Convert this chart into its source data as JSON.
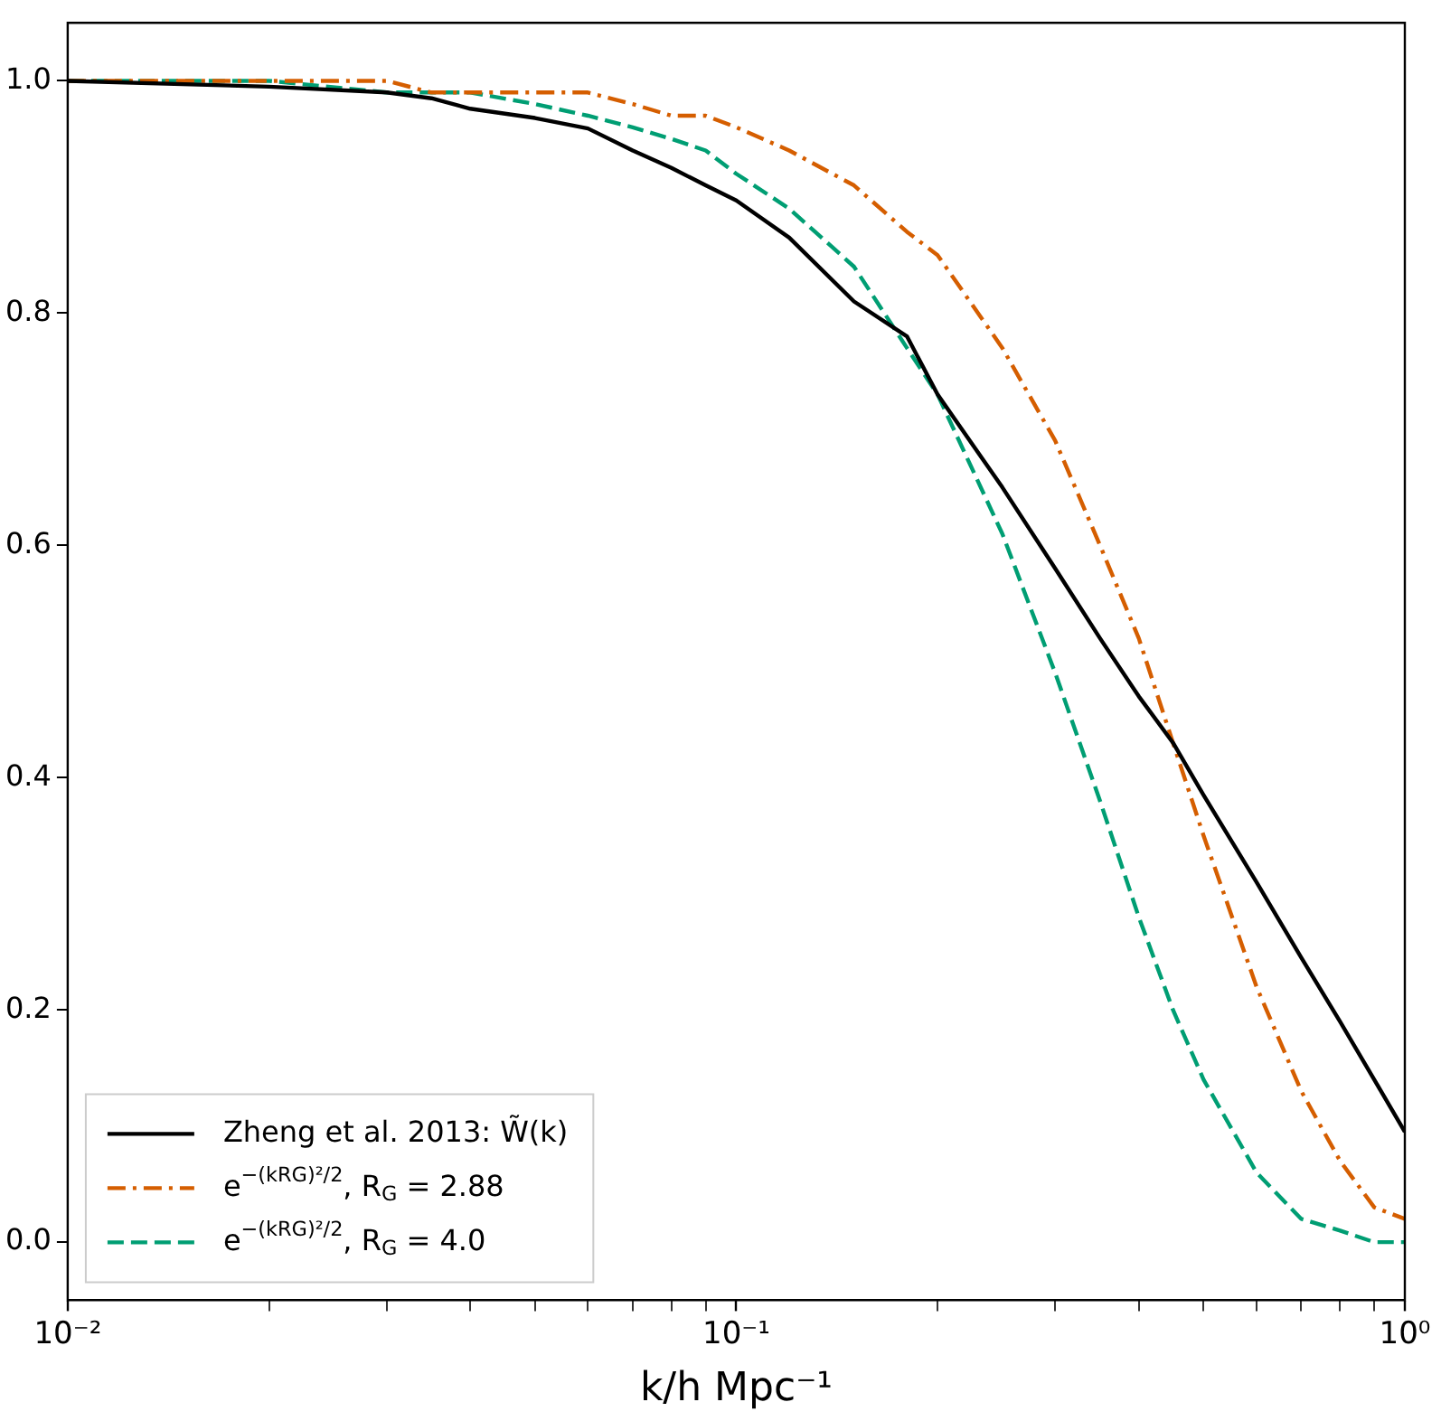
{
  "chart_data": {
    "type": "line",
    "xlabel": "k/h Mpc⁻¹",
    "log": "x",
    "grid": false,
    "legend": "bottom left",
    "marker": "none",
    "x": [
      0.01,
      0.02,
      0.03,
      0.035,
      0.04,
      0.05,
      0.06,
      0.07,
      0.08,
      0.09,
      0.1,
      0.12,
      0.15,
      0.18,
      0.2,
      0.25,
      0.3,
      0.35,
      0.4,
      0.45,
      0.5,
      0.6,
      0.7,
      0.8,
      0.9,
      1.0
    ],
    "series": [
      {
        "name": "Zheng et al. 2013: W̃(k)",
        "color": "#000000",
        "line_style": "solid",
        "values": [
          1.0,
          0.995,
          0.99,
          0.985,
          0.976,
          0.968,
          0.959,
          0.94,
          0.925,
          0.91,
          0.897,
          0.865,
          0.81,
          0.78,
          0.73,
          0.65,
          0.58,
          0.52,
          0.47,
          0.43,
          0.385,
          0.31,
          0.245,
          0.19,
          0.14,
          0.095
        ]
      },
      {
        "name": "e$^{−(kRG)²/2}$, R$_{G}$ = 2.88",
        "color": "#d55e00",
        "line_style": "dashdot",
        "values": [
          1.0,
          1.0,
          1.0,
          0.99,
          0.99,
          0.99,
          0.99,
          0.98,
          0.97,
          0.97,
          0.96,
          0.94,
          0.91,
          0.87,
          0.85,
          0.77,
          0.69,
          0.6,
          0.52,
          0.43,
          0.35,
          0.22,
          0.13,
          0.07,
          0.03,
          0.02
        ]
      },
      {
        "name": "e$^{−(kRG)²/2}$, R$_{G}$ = 4.0",
        "color": "#009e73",
        "line_style": "dashed",
        "values": [
          1.0,
          1.0,
          0.99,
          0.99,
          0.99,
          0.98,
          0.97,
          0.96,
          0.95,
          0.94,
          0.92,
          0.89,
          0.84,
          0.77,
          0.73,
          0.61,
          0.49,
          0.38,
          0.28,
          0.2,
          0.14,
          0.06,
          0.02,
          0.01,
          0.0,
          0.0
        ]
      }
    ],
    "xlim": [
      0.01,
      1
    ],
    "xticks": [
      {
        "value": 0.01,
        "label": "10⁻²"
      },
      {
        "value": 0.02,
        "label": null
      },
      {
        "value": 0.03,
        "label": null
      },
      {
        "value": 0.04,
        "label": null
      },
      {
        "value": 0.05,
        "label": null
      },
      {
        "value": 0.06,
        "label": null
      },
      {
        "value": 0.07,
        "label": null
      },
      {
        "value": 0.08,
        "label": null
      },
      {
        "value": 0.09,
        "label": null
      },
      {
        "value": 0.1,
        "label": "10⁻¹"
      },
      {
        "value": 0.2,
        "label": null
      },
      {
        "value": 0.3,
        "label": null
      },
      {
        "value": 0.4,
        "label": null
      },
      {
        "value": 0.5,
        "label": null
      },
      {
        "value": 0.6,
        "label": null
      },
      {
        "value": 0.7,
        "label": null
      },
      {
        "value": 0.8,
        "label": null
      },
      {
        "value": 0.9,
        "label": null
      },
      {
        "value": 1,
        "label": "10⁰"
      }
    ],
    "ylim": [
      -0.05,
      1.05
    ],
    "yticks": [
      {
        "value": 0,
        "label": "0.0"
      },
      {
        "value": 0.2,
        "label": "0.2"
      },
      {
        "value": 0.4,
        "label": "0.4"
      },
      {
        "value": 0.6,
        "label": "0.6"
      },
      {
        "value": 0.8,
        "label": "0.8"
      },
      {
        "value": 1,
        "label": "1.0"
      }
    ]
  }
}
